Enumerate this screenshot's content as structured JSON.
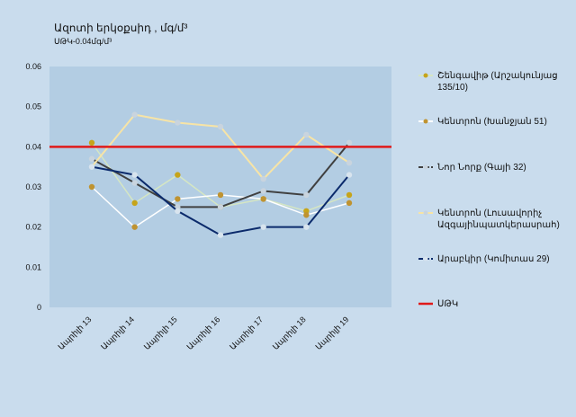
{
  "chart_data": {
    "type": "line",
    "title": "Ազոտի երկօքսիդ , մգ/մ³",
    "subtitle": "ՍԹԿ-0.04մգ/մ³",
    "categories": [
      "Ապրիլի 13",
      "Ապրիլի 14",
      "Ապրիլի 15",
      "Ապրիլի 16",
      "Ապրիլի 17",
      "Ապրիլի 18",
      "Ապրիլի 19"
    ],
    "ylim": [
      0,
      0.06
    ],
    "yticks": [
      "0",
      "0.01",
      "0.02",
      "0.03",
      "0.04",
      "0.05",
      "0.06"
    ],
    "ytick_values": [
      0,
      0.01,
      0.02,
      0.03,
      0.04,
      0.05,
      0.06
    ],
    "grid": false,
    "legend_position": "right",
    "plot_background": "#b3cde3",
    "series": [
      {
        "name": "Շենգավիթ (Արշակունյաց 135/10)",
        "values": [
          0.041,
          0.026,
          0.033,
          0.025,
          0.027,
          0.024,
          0.028
        ],
        "color": "#d5e6c3",
        "marker_color": "#c6a41a",
        "dash": false,
        "width": 1.5
      },
      {
        "name": "Կենտրոն (Խանջյան 51)",
        "values": [
          0.03,
          0.02,
          0.027,
          0.028,
          0.027,
          0.023,
          0.026
        ],
        "color": "#ffffff",
        "marker_color": "#bf9331",
        "dash": false,
        "width": 1.5
      },
      {
        "name": "Նոր Նորք (Գայի 32)",
        "values": [
          0.037,
          0.031,
          0.025,
          0.025,
          0.029,
          0.028,
          0.041
        ],
        "color": "#404040",
        "marker_color": "#c9d4de",
        "dash": false,
        "width": 2
      },
      {
        "name": "Կենտրոն (Լուսավորիչ Ազգայինպատկերասրահ)",
        "values": [
          0.035,
          0.048,
          0.046,
          0.045,
          0.032,
          0.043,
          0.036
        ],
        "color": "#f7e4a6",
        "marker_color": "#c9d4de",
        "dash": false,
        "width": 2
      },
      {
        "name": "Արաբկիր (Կոմիտաս 29)",
        "values": [
          0.035,
          0.033,
          0.024,
          0.018,
          0.02,
          0.02,
          0.033
        ],
        "color": "#0b2a6b",
        "marker_color": "#d8e4ee",
        "dash": false,
        "width": 2
      },
      {
        "name": "ՍԹԿ",
        "values": [
          0.04,
          0.04,
          0.04,
          0.04,
          0.04,
          0.04,
          0.04
        ],
        "color": "#e01a1a",
        "marker_color": null,
        "dash": false,
        "width": 2.5,
        "threshold": true
      }
    ]
  }
}
